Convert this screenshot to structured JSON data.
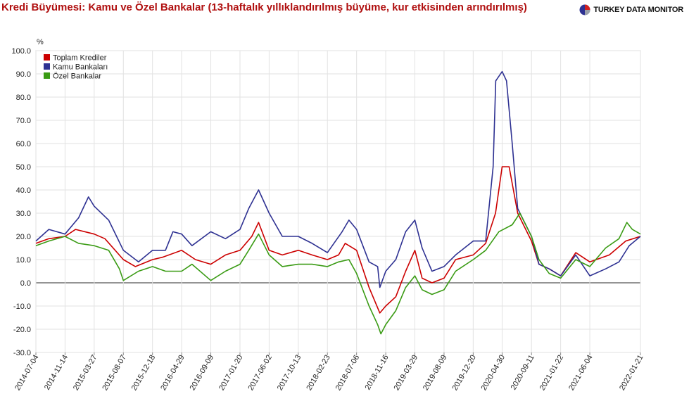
{
  "header": {
    "title": "Kredi Büyümesi: Kamu ve Özel Bankalar (13-haftalık yıllıklandırılmış büyüme, kur etkisinden arındırılmış)",
    "brand": "TURKEY DATA MONITOR"
  },
  "chart_data": {
    "type": "line",
    "ylabel": "%",
    "ylim": [
      -30,
      100
    ],
    "yticks": [
      100,
      90,
      80,
      70,
      60,
      50,
      40,
      30,
      20,
      10,
      0,
      -10,
      -20,
      -30
    ],
    "xlim": [
      "2014-07-04",
      "2022-01-21"
    ],
    "xticks": [
      "2014-07-04",
      "2014-11-14",
      "2015-03-27",
      "2015-08-07",
      "2015-12-18",
      "2016-04-29",
      "2016-09-09",
      "2017-01-20",
      "2017-06-02",
      "2017-10-13",
      "2018-02-23",
      "2018-07-06",
      "2018-11-16",
      "2019-03-29",
      "2019-08-09",
      "2019-12-20",
      "2020-04-30",
      "2020-09-11",
      "2021-01-22",
      "2021-06-04",
      "2022-01-21"
    ],
    "grid": true,
    "legend_position": "top-left",
    "series": [
      {
        "name": "Toplam Krediler",
        "color": "#cc0000",
        "points": [
          [
            "2014-07-04",
            17
          ],
          [
            "2014-09-01",
            19
          ],
          [
            "2014-11-14",
            20
          ],
          [
            "2015-01-01",
            23
          ],
          [
            "2015-03-27",
            21
          ],
          [
            "2015-05-15",
            19
          ],
          [
            "2015-08-07",
            10
          ],
          [
            "2015-10-01",
            7
          ],
          [
            "2015-12-18",
            10
          ],
          [
            "2016-02-01",
            11
          ],
          [
            "2016-04-29",
            14
          ],
          [
            "2016-07-01",
            10
          ],
          [
            "2016-09-09",
            8
          ],
          [
            "2016-11-15",
            12
          ],
          [
            "2017-01-20",
            14
          ],
          [
            "2017-03-15",
            20
          ],
          [
            "2017-04-15",
            26
          ],
          [
            "2017-06-02",
            14
          ],
          [
            "2017-08-01",
            12
          ],
          [
            "2017-10-13",
            14
          ],
          [
            "2017-12-15",
            12
          ],
          [
            "2018-02-23",
            10
          ],
          [
            "2018-04-15",
            12
          ],
          [
            "2018-05-15",
            17
          ],
          [
            "2018-07-06",
            14
          ],
          [
            "2018-09-01",
            -2
          ],
          [
            "2018-10-20",
            -13
          ],
          [
            "2018-11-16",
            -10
          ],
          [
            "2019-01-01",
            -6
          ],
          [
            "2019-02-15",
            5
          ],
          [
            "2019-03-29",
            14
          ],
          [
            "2019-05-01",
            2
          ],
          [
            "2019-06-15",
            0
          ],
          [
            "2019-08-09",
            2
          ],
          [
            "2019-10-01",
            10
          ],
          [
            "2019-12-20",
            12
          ],
          [
            "2020-02-15",
            17
          ],
          [
            "2020-03-31",
            30
          ],
          [
            "2020-04-30",
            50
          ],
          [
            "2020-06-01",
            50
          ],
          [
            "2020-07-10",
            30
          ],
          [
            "2020-09-11",
            18
          ],
          [
            "2020-10-15",
            8
          ],
          [
            "2020-12-01",
            6
          ],
          [
            "2021-01-22",
            3
          ],
          [
            "2021-04-01",
            13
          ],
          [
            "2021-06-04",
            9
          ],
          [
            "2021-09-01",
            12
          ],
          [
            "2021-11-15",
            18
          ],
          [
            "2022-01-21",
            20
          ]
        ]
      },
      {
        "name": "Kamu Bankaları",
        "color": "#2e3192",
        "points": [
          [
            "2014-07-04",
            18
          ],
          [
            "2014-09-01",
            23
          ],
          [
            "2014-11-14",
            21
          ],
          [
            "2015-01-15",
            28
          ],
          [
            "2015-03-01",
            37
          ],
          [
            "2015-03-27",
            33
          ],
          [
            "2015-06-01",
            27
          ],
          [
            "2015-08-07",
            14
          ],
          [
            "2015-10-15",
            9
          ],
          [
            "2015-12-18",
            14
          ],
          [
            "2016-02-15",
            14
          ],
          [
            "2016-03-20",
            22
          ],
          [
            "2016-04-29",
            21
          ],
          [
            "2016-06-15",
            16
          ],
          [
            "2016-09-09",
            22
          ],
          [
            "2016-11-15",
            19
          ],
          [
            "2017-01-20",
            23
          ],
          [
            "2017-03-01",
            32
          ],
          [
            "2017-04-15",
            40
          ],
          [
            "2017-06-02",
            30
          ],
          [
            "2017-08-01",
            20
          ],
          [
            "2017-10-13",
            20
          ],
          [
            "2017-12-15",
            17
          ],
          [
            "2018-02-23",
            13
          ],
          [
            "2018-05-01",
            22
          ],
          [
            "2018-06-01",
            27
          ],
          [
            "2018-07-06",
            23
          ],
          [
            "2018-09-01",
            9
          ],
          [
            "2018-10-10",
            7
          ],
          [
            "2018-10-20",
            -2
          ],
          [
            "2018-11-16",
            5
          ],
          [
            "2019-01-01",
            10
          ],
          [
            "2019-02-15",
            22
          ],
          [
            "2019-03-29",
            27
          ],
          [
            "2019-05-01",
            15
          ],
          [
            "2019-06-15",
            5
          ],
          [
            "2019-08-09",
            7
          ],
          [
            "2019-10-01",
            12
          ],
          [
            "2019-12-20",
            18
          ],
          [
            "2020-02-15",
            18
          ],
          [
            "2020-03-20",
            50
          ],
          [
            "2020-04-01",
            87
          ],
          [
            "2020-04-30",
            91
          ],
          [
            "2020-05-20",
            87
          ],
          [
            "2020-06-15",
            60
          ],
          [
            "2020-07-10",
            32
          ],
          [
            "2020-09-11",
            20
          ],
          [
            "2020-10-15",
            8
          ],
          [
            "2020-12-01",
            6
          ],
          [
            "2021-01-22",
            3
          ],
          [
            "2021-04-01",
            12
          ],
          [
            "2021-06-04",
            3
          ],
          [
            "2021-08-15",
            6
          ],
          [
            "2021-10-15",
            9
          ],
          [
            "2021-12-01",
            16
          ],
          [
            "2022-01-21",
            20
          ]
        ]
      },
      {
        "name": "Özel Bankalar",
        "color": "#3a9b14",
        "points": [
          [
            "2014-07-04",
            16
          ],
          [
            "2014-09-01",
            18
          ],
          [
            "2014-11-14",
            20
          ],
          [
            "2015-01-15",
            17
          ],
          [
            "2015-03-27",
            16
          ],
          [
            "2015-06-01",
            14
          ],
          [
            "2015-07-20",
            6
          ],
          [
            "2015-08-07",
            1
          ],
          [
            "2015-10-15",
            5
          ],
          [
            "2015-12-18",
            7
          ],
          [
            "2016-02-15",
            5
          ],
          [
            "2016-04-29",
            5
          ],
          [
            "2016-06-15",
            8
          ],
          [
            "2016-09-09",
            1
          ],
          [
            "2016-11-15",
            5
          ],
          [
            "2017-01-20",
            8
          ],
          [
            "2017-03-01",
            14
          ],
          [
            "2017-04-15",
            21
          ],
          [
            "2017-06-02",
            12
          ],
          [
            "2017-08-01",
            7
          ],
          [
            "2017-10-13",
            8
          ],
          [
            "2017-12-15",
            8
          ],
          [
            "2018-02-23",
            7
          ],
          [
            "2018-04-15",
            9
          ],
          [
            "2018-06-01",
            10
          ],
          [
            "2018-07-06",
            4
          ],
          [
            "2018-09-01",
            -10
          ],
          [
            "2018-10-10",
            -18
          ],
          [
            "2018-10-25",
            -22
          ],
          [
            "2018-11-16",
            -18
          ],
          [
            "2019-01-01",
            -12
          ],
          [
            "2019-02-15",
            -2
          ],
          [
            "2019-03-29",
            3
          ],
          [
            "2019-05-01",
            -3
          ],
          [
            "2019-06-15",
            -5
          ],
          [
            "2019-08-09",
            -3
          ],
          [
            "2019-10-01",
            5
          ],
          [
            "2019-12-20",
            10
          ],
          [
            "2020-02-15",
            14
          ],
          [
            "2020-04-15",
            22
          ],
          [
            "2020-06-15",
            25
          ],
          [
            "2020-07-20",
            30
          ],
          [
            "2020-09-11",
            20
          ],
          [
            "2020-10-15",
            10
          ],
          [
            "2020-12-01",
            4
          ],
          [
            "2021-01-22",
            2
          ],
          [
            "2021-04-01",
            10
          ],
          [
            "2021-06-04",
            7
          ],
          [
            "2021-08-15",
            15
          ],
          [
            "2021-10-15",
            19
          ],
          [
            "2021-11-20",
            26
          ],
          [
            "2021-12-15",
            23
          ],
          [
            "2022-01-21",
            21
          ]
        ]
      }
    ]
  }
}
